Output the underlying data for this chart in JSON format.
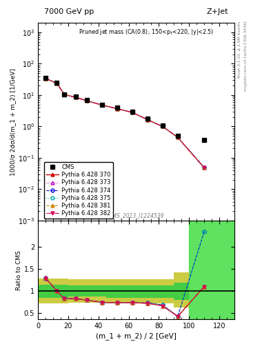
{
  "title_left": "7000 GeV pp",
  "title_right": "Z+Jet",
  "plot_label": "Pruned jet mass (CA(0.8), 150<p$_T$<220, |y|<2.5)",
  "watermark": "CMS_2013_I1224539",
  "ylabel_main": "1000/σ 2dσ/d(m_1 + m_2) [1/GeV]",
  "ylabel_ratio": "Ratio to CMS",
  "xlabel": "(m_1 + m_2) / 2 [GeV]",
  "right_label1": "Rivet 3.1.10, ≥ 2.9M events",
  "right_label2": "mcplots.cern.ch [arXiv:1306.3436]",
  "cms_x": [
    5,
    12.5,
    17.5,
    25,
    32.5,
    42.5,
    52.5,
    62.5,
    72.5,
    82.5,
    92.5,
    110
  ],
  "cms_y": [
    35,
    25,
    10.5,
    9.0,
    7.0,
    5.0,
    4.0,
    3.0,
    1.8,
    1.1,
    0.5,
    0.38
  ],
  "x_centers": [
    5,
    12.5,
    17.5,
    25,
    32.5,
    42.5,
    52.5,
    62.5,
    72.5,
    82.5,
    92.5,
    110
  ],
  "pythia_370": [
    34,
    24,
    10.5,
    8.5,
    6.6,
    4.8,
    3.7,
    2.8,
    1.65,
    1.0,
    0.45,
    0.048
  ],
  "pythia_373": [
    34,
    24,
    10.5,
    8.5,
    6.6,
    4.8,
    3.7,
    2.8,
    1.65,
    1.0,
    0.45,
    0.048
  ],
  "pythia_374": [
    34,
    24,
    10.5,
    8.5,
    6.6,
    4.8,
    3.7,
    2.8,
    1.65,
    1.0,
    0.45,
    0.05
  ],
  "pythia_375": [
    34,
    24,
    10.5,
    8.5,
    6.6,
    4.8,
    3.7,
    2.8,
    1.65,
    1.0,
    0.45,
    0.05
  ],
  "pythia_381": [
    34,
    24,
    10.5,
    8.5,
    6.6,
    4.8,
    3.7,
    2.8,
    1.65,
    1.0,
    0.45,
    0.048
  ],
  "pythia_382": [
    34,
    24,
    10.5,
    8.5,
    6.6,
    4.8,
    3.7,
    2.8,
    1.65,
    1.0,
    0.45,
    0.048
  ],
  "ratio_x": [
    5,
    12.5,
    17.5,
    25,
    32.5,
    42.5,
    52.5,
    62.5,
    72.5,
    82.5,
    92.5,
    110
  ],
  "ratio_370": [
    1.3,
    1.0,
    0.82,
    0.82,
    0.79,
    0.74,
    0.73,
    0.73,
    0.72,
    0.66,
    0.42,
    1.1
  ],
  "ratio_373": [
    1.28,
    1.0,
    0.82,
    0.82,
    0.79,
    0.74,
    0.73,
    0.73,
    0.72,
    0.66,
    0.42,
    1.1
  ],
  "ratio_374": [
    1.3,
    1.0,
    0.83,
    0.83,
    0.79,
    0.74,
    0.73,
    0.73,
    0.73,
    0.68,
    0.42,
    2.35
  ],
  "ratio_375": [
    1.28,
    1.0,
    0.83,
    0.83,
    0.79,
    0.74,
    0.73,
    0.73,
    0.73,
    0.68,
    0.42,
    2.35
  ],
  "ratio_381": [
    1.3,
    1.0,
    0.82,
    0.82,
    0.79,
    0.74,
    0.73,
    0.73,
    0.72,
    0.66,
    0.42,
    1.1
  ],
  "ratio_382": [
    1.28,
    1.0,
    0.82,
    0.82,
    0.79,
    0.74,
    0.73,
    0.73,
    0.72,
    0.66,
    0.42,
    1.1
  ],
  "band_x_edges": [
    0,
    10,
    20,
    30,
    45,
    60,
    75,
    90,
    100
  ],
  "yellow_lo": [
    0.72,
    0.72,
    0.74,
    0.74,
    0.72,
    0.72,
    0.72,
    0.62,
    0.62
  ],
  "yellow_hi": [
    1.28,
    1.28,
    1.26,
    1.26,
    1.26,
    1.26,
    1.26,
    1.42,
    1.42
  ],
  "green_lo": [
    0.85,
    0.85,
    0.87,
    0.87,
    0.85,
    0.85,
    0.85,
    0.8,
    0.8
  ],
  "green_hi": [
    1.14,
    1.14,
    1.12,
    1.12,
    1.12,
    1.12,
    1.12,
    1.18,
    1.18
  ],
  "green_shade": "#44cc44",
  "yellow_shade": "#cccc44",
  "green_right_shade": "#44dd44",
  "xlim": [
    0,
    130
  ],
  "ylim_main": [
    0.001,
    2000
  ],
  "ylim_ratio": [
    0.35,
    2.6
  ],
  "ratio_yticks": [
    0.5,
    1.0,
    1.5,
    2.0
  ],
  "ratio_yticklabels": [
    "0.5",
    "1",
    "1.5",
    "2"
  ],
  "colors_370": "#cc0000",
  "colors_373": "#bb00bb",
  "colors_374": "#0000dd",
  "colors_375": "#00aaaa",
  "colors_381": "#cc8800",
  "colors_382": "#dd0055",
  "marker_colors_374": "#0000dd",
  "marker_colors_375": "#00aaaa"
}
